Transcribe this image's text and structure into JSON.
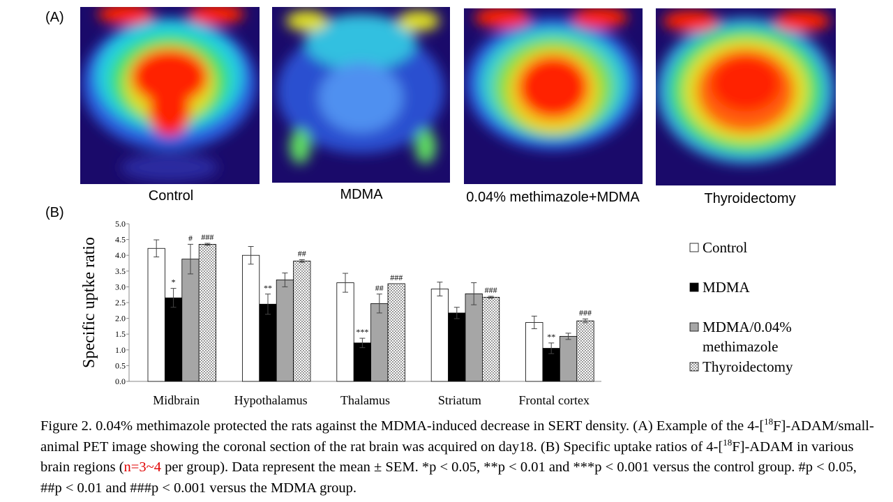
{
  "panel_a": "(A)",
  "panel_b": "(B)",
  "images": [
    "Control",
    "MDMA",
    "0.04% methimazole+MDMA",
    "Thyroidectomy"
  ],
  "chart_data": {
    "type": "bar",
    "ylabel": "Specific uptke ratio",
    "categories": [
      "Midbrain",
      "Hypothalamus",
      "Thalamus",
      "Striatum",
      "Frontal cortex"
    ],
    "ylim": [
      0,
      5
    ],
    "yticks": [
      {
        "value": 0,
        "label": "0.0"
      },
      {
        "value": 0.5,
        "label": "0.5"
      },
      {
        "value": 1,
        "label": "1.0"
      },
      {
        "value": 1.5,
        "label": "1.5"
      },
      {
        "value": 2,
        "label": "2.0"
      },
      {
        "value": 2.5,
        "label": "2.5"
      },
      {
        "value": 3,
        "label": "3.0"
      },
      {
        "value": 3.5,
        "label": "3.5"
      },
      {
        "value": 4,
        "label": "4.0"
      },
      {
        "value": 4.5,
        "label": "4.5"
      },
      {
        "value": 5,
        "label": "5.0"
      }
    ],
    "series": [
      {
        "name": "Control",
        "color": "#ffffff",
        "values": [
          4.22,
          4.0,
          3.13,
          2.93,
          1.87
        ],
        "errors": [
          0.27,
          0.28,
          0.3,
          0.22,
          0.2
        ],
        "annotations": [
          null,
          null,
          null,
          null,
          null
        ]
      },
      {
        "name": "MDMA",
        "color": "#000000",
        "values": [
          2.65,
          2.45,
          1.22,
          2.17,
          1.05
        ],
        "errors": [
          0.3,
          0.32,
          0.15,
          0.18,
          0.17
        ],
        "annotations": [
          "*",
          "**",
          "***",
          null,
          "**"
        ]
      },
      {
        "name": "MDMA/0.04% methimazole",
        "color": "#a6a6a6",
        "values": [
          3.88,
          3.22,
          2.47,
          2.78,
          1.43
        ],
        "errors": [
          0.47,
          0.22,
          0.3,
          0.35,
          0.1
        ],
        "annotations": [
          "#",
          null,
          "##",
          null,
          null
        ]
      },
      {
        "name": "Thyroidectomy",
        "color": "dots",
        "values": [
          4.35,
          3.82,
          3.1,
          2.67,
          1.92
        ],
        "errors": [
          0.03,
          0.04,
          0.0,
          0.03,
          0.06
        ],
        "annotations": [
          "###",
          "##",
          "###",
          "###",
          "###"
        ]
      }
    ]
  },
  "caption": [
    "Figure 2. 0.04% methimazole protected the rats against the MDMA-induced decrease in SERT density. (A) Example of the 4-[",
    "18",
    "F]-ADAM/small-animal  PET image showing the coronal section of the rat brain was acquired on day18. (B) Specific uptake ratios of 4-[",
    "18",
    "F]-ADAM in various brain regions (",
    "n=3~4",
    " per group). Data represent the mean ± SEM. *p < 0.05, **p < 0.01 and ***p < 0.001 versus the control group. #p < 0.05, ##p < 0.01 and ###p < 0.001 versus the MDMA group."
  ]
}
